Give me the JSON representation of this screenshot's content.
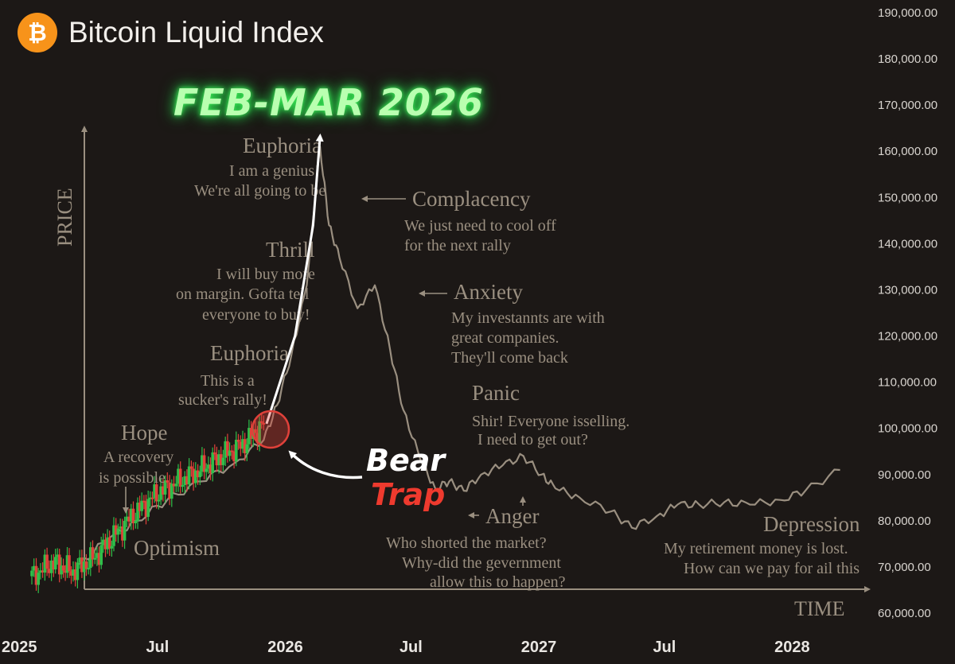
{
  "header": {
    "logo_glyph": "₿",
    "logo_icon": "bitcoin-logo-icon",
    "title": "Bitcoin Liquid Index"
  },
  "headline": "FEB-MAR 2026",
  "callout": {
    "line1": "Bear",
    "line2": "Trap"
  },
  "colors": {
    "background": "#1c1816",
    "up": "#2fbf4a",
    "down": "#e0413a",
    "headline": "#b9ffb0",
    "trap": "#ee3a2e",
    "cycle_line": "#9a8f80",
    "logo": "#f7931a"
  },
  "cycle_diagram": {
    "axis_y_label": "PRICE",
    "axis_x_label": "TIME",
    "stages": [
      {
        "title": "Hope",
        "lines": [
          "A recovery",
          "is possible"
        ]
      },
      {
        "title": "Optimism",
        "lines": []
      },
      {
        "title": "Euphoria",
        "lines": [
          "This is a",
          "sucker's rally!"
        ]
      },
      {
        "title": "Thrill",
        "lines": [
          "I will buy more",
          "on margin. Gofta tell",
          "everyone to buy!"
        ]
      },
      {
        "title": "Euphoria",
        "lines": [
          "I am a genius!",
          "We're all going to be"
        ]
      },
      {
        "title": "Complacency",
        "lines": [
          "We just need to cool off",
          "for the next rally"
        ]
      },
      {
        "title": "Anxiety",
        "lines": [
          "My investannts are with",
          "great companies.",
          "They'll come back"
        ]
      },
      {
        "title": "Panic",
        "lines": [
          "Shir! Everyone isselling.",
          "I need to get out?"
        ]
      },
      {
        "title": "Anger",
        "lines": [
          "Who shorted the market?",
          "Why-did the gevernment",
          "allow this to happen?"
        ]
      },
      {
        "title": "Depression",
        "lines": [
          "My retirement money is lost.",
          "How can we pay for ail this"
        ]
      }
    ]
  },
  "chart_data": {
    "type": "line",
    "title": "Bitcoin Liquid Index",
    "x_tick_labels": [
      "2025",
      "Jul",
      "2026",
      "Jul",
      "2027",
      "Jul",
      "2028"
    ],
    "y_tick_labels": [
      "190,000.00",
      "180,000.00",
      "170,000.00",
      "160,000.00",
      "150,000.00",
      "140,000.00",
      "130,000.00",
      "120,000.00",
      "110,000.00",
      "100,000.00",
      "90,000.00",
      "80,000.00",
      "70,000.00",
      "60,000.00"
    ],
    "ylim": [
      60000,
      190000
    ],
    "xlim": [
      "2025-01-01",
      "2028-03-15"
    ],
    "candles_x": [
      "2025-01-01",
      "2025-02-01",
      "2025-03-01",
      "2025-04-01",
      "2025-05-01",
      "2025-06-01",
      "2025-07-01",
      "2025-08-01",
      "2025-09-01",
      "2025-10-01",
      "2025-11-01",
      "2025-12-01"
    ],
    "candles_y": [
      68000,
      71000,
      69000,
      72000,
      77000,
      82000,
      86000,
      88500,
      91000,
      94000,
      96500,
      101000
    ],
    "cycle_series": {
      "x": [
        "2025-03-10",
        "2025-04-20",
        "2025-06-01",
        "2025-07-15",
        "2025-09-01",
        "2025-10-20",
        "2025-12-01",
        "2025-12-20",
        "2026-01-10",
        "2026-02-01",
        "2026-02-20",
        "2026-03-05",
        "2026-03-20",
        "2026-04-15",
        "2026-05-10",
        "2026-06-01",
        "2026-06-20",
        "2026-07-15",
        "2026-08-05",
        "2026-08-25",
        "2026-09-15",
        "2026-10-10",
        "2026-11-10",
        "2026-12-10",
        "2027-01-05",
        "2027-01-25",
        "2027-03-01",
        "2027-04-15",
        "2027-05-15",
        "2027-06-20",
        "2027-07-20",
        "2027-08-20",
        "2027-09-25",
        "2027-11-01",
        "2027-12-15",
        "2028-01-20",
        "2028-03-10"
      ],
      "y": [
        70500,
        76000,
        80000,
        84500,
        88500,
        92500,
        97500,
        105000,
        116000,
        131000,
        161000,
        144000,
        137000,
        126000,
        131000,
        117000,
        104000,
        93000,
        87000,
        88500,
        86500,
        90000,
        92000,
        94000,
        90000,
        87000,
        85000,
        82000,
        78500,
        81000,
        83500,
        83500,
        84000,
        83500,
        84500,
        86500,
        91000
      ]
    },
    "arrow_series": {
      "x": [
        "2025-12-05",
        "2026-01-15",
        "2026-02-10",
        "2026-02-20"
      ],
      "y": [
        101000,
        120000,
        144000,
        163000
      ]
    }
  }
}
